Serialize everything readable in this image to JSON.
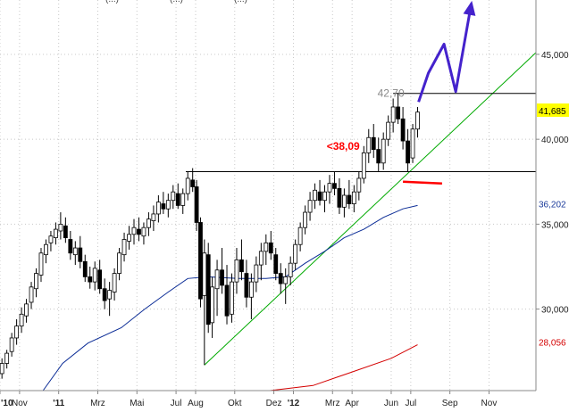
{
  "chart_data": {
    "type": "candlestick",
    "title_fragments": [
      "(...)",
      "(...)",
      "(...)"
    ],
    "x_ticks": [
      {
        "label": "'10",
        "month": 0
      },
      {
        "label": "Nov",
        "month": 1
      },
      {
        "label": "'11",
        "month": 3
      },
      {
        "label": "Mrz",
        "month": 5
      },
      {
        "label": "Mai",
        "month": 7
      },
      {
        "label": "Jul",
        "month": 9
      },
      {
        "label": "Aug",
        "month": 10
      },
      {
        "label": "Okt",
        "month": 12
      },
      {
        "label": "Dez",
        "month": 14
      },
      {
        "label": "'12",
        "month": 15
      },
      {
        "label": "Mrz",
        "month": 17
      },
      {
        "label": "Apr",
        "month": 18
      },
      {
        "label": "Jun",
        "month": 20
      },
      {
        "label": "Jul",
        "month": 21
      },
      {
        "label": "Sep",
        "month": 23
      },
      {
        "label": "Nov",
        "month": 25
      }
    ],
    "y_ticks": [
      {
        "label": "30,000",
        "value": 30
      },
      {
        "label": "35,000",
        "value": 35
      },
      {
        "label": "40,000",
        "value": 40
      },
      {
        "label": "45,000",
        "value": 45
      }
    ],
    "ylim": [
      25.2,
      48.2
    ],
    "xlim": [
      0,
      27.4
    ],
    "candles": [
      [
        0.1,
        26.2,
        27.1,
        25.9,
        26.8
      ],
      [
        0.35,
        26.8,
        27.6,
        26.5,
        27.4
      ],
      [
        0.6,
        27.5,
        28.6,
        27.2,
        28.3
      ],
      [
        0.85,
        28.3,
        29.4,
        27.9,
        29.0
      ],
      [
        1.1,
        29.0,
        30.1,
        28.6,
        29.7
      ],
      [
        1.35,
        29.6,
        30.6,
        29.2,
        30.3
      ],
      [
        1.6,
        30.4,
        31.6,
        30.0,
        31.3
      ],
      [
        1.85,
        31.2,
        32.4,
        30.7,
        32.1
      ],
      [
        2.1,
        32.0,
        33.6,
        31.6,
        33.3
      ],
      [
        2.35,
        33.2,
        34.1,
        32.7,
        33.8
      ],
      [
        2.6,
        33.9,
        34.6,
        33.4,
        34.3
      ],
      [
        2.85,
        34.2,
        35.1,
        33.8,
        34.7
      ],
      [
        3.1,
        34.6,
        35.7,
        34.1,
        35.0
      ],
      [
        3.35,
        34.9,
        35.4,
        33.9,
        34.2
      ],
      [
        3.6,
        34.1,
        34.6,
        32.9,
        33.3
      ],
      [
        3.85,
        33.2,
        34.0,
        32.6,
        33.6
      ],
      [
        4.1,
        33.6,
        34.3,
        32.4,
        32.8
      ],
      [
        4.35,
        32.8,
        33.2,
        31.6,
        31.9
      ],
      [
        4.6,
        31.9,
        32.5,
        31.2,
        31.6
      ],
      [
        4.85,
        31.6,
        32.8,
        31.1,
        32.4
      ],
      [
        5.1,
        32.3,
        32.9,
        30.9,
        31.2
      ],
      [
        5.35,
        31.2,
        31.8,
        30.0,
        30.5
      ],
      [
        5.6,
        30.6,
        31.6,
        29.6,
        31.1
      ],
      [
        5.85,
        31.0,
        32.4,
        30.5,
        32.1
      ],
      [
        6.1,
        32.1,
        33.6,
        31.7,
        33.3
      ],
      [
        6.35,
        33.2,
        34.5,
        32.8,
        34.1
      ],
      [
        6.6,
        34.0,
        34.9,
        33.5,
        34.4
      ],
      [
        6.85,
        34.4,
        35.3,
        33.8,
        34.8
      ],
      [
        7.1,
        34.7,
        35.4,
        34.0,
        34.4
      ],
      [
        7.35,
        34.3,
        35.1,
        33.8,
        34.8
      ],
      [
        7.6,
        34.8,
        35.7,
        34.3,
        35.3
      ],
      [
        7.85,
        35.2,
        36.1,
        34.6,
        35.6
      ],
      [
        8.1,
        35.6,
        36.7,
        35.1,
        36.3
      ],
      [
        8.35,
        36.2,
        36.9,
        35.6,
        35.9
      ],
      [
        8.6,
        35.9,
        36.8,
        35.4,
        36.4
      ],
      [
        8.85,
        36.4,
        37.3,
        35.9,
        36.9
      ],
      [
        9.1,
        36.8,
        37.4,
        35.9,
        36.1
      ],
      [
        9.35,
        36.1,
        37.1,
        35.6,
        36.8
      ],
      [
        9.6,
        36.8,
        38.1,
        36.4,
        37.7
      ],
      [
        9.85,
        37.6,
        38.3,
        36.9,
        37.2
      ],
      [
        10.05,
        37.2,
        37.6,
        34.6,
        35.1
      ],
      [
        10.25,
        35.1,
        35.4,
        30.1,
        30.6
      ],
      [
        10.45,
        30.8,
        34.1,
        26.7,
        33.3
      ],
      [
        10.65,
        33.2,
        33.9,
        28.6,
        29.1
      ],
      [
        10.85,
        29.2,
        31.9,
        28.3,
        31.3
      ],
      [
        11.1,
        31.2,
        32.9,
        29.6,
        32.3
      ],
      [
        11.35,
        32.3,
        33.6,
        30.9,
        31.4
      ],
      [
        11.6,
        31.4,
        32.6,
        29.1,
        29.6
      ],
      [
        11.85,
        29.7,
        32.1,
        29.2,
        31.6
      ],
      [
        12.1,
        31.6,
        33.6,
        30.9,
        32.9
      ],
      [
        12.35,
        32.9,
        34.1,
        31.7,
        32.2
      ],
      [
        12.6,
        32.1,
        32.9,
        30.1,
        30.7
      ],
      [
        12.85,
        30.7,
        32.1,
        29.4,
        31.6
      ],
      [
        13.1,
        31.6,
        33.1,
        31.0,
        32.6
      ],
      [
        13.35,
        32.6,
        33.9,
        31.7,
        33.4
      ],
      [
        13.6,
        33.4,
        34.4,
        32.6,
        33.9
      ],
      [
        13.85,
        33.9,
        34.6,
        32.9,
        33.3
      ],
      [
        14.1,
        33.2,
        33.6,
        31.7,
        32.1
      ],
      [
        14.35,
        32.1,
        32.7,
        30.9,
        31.5
      ],
      [
        14.6,
        31.5,
        32.4,
        30.3,
        31.9
      ],
      [
        14.85,
        31.9,
        33.1,
        31.4,
        32.7
      ],
      [
        15.1,
        32.7,
        34.1,
        32.3,
        33.8
      ],
      [
        15.35,
        33.8,
        35.1,
        33.4,
        34.8
      ],
      [
        15.6,
        34.8,
        36.1,
        34.4,
        35.7
      ],
      [
        15.85,
        35.7,
        36.9,
        35.2,
        36.4
      ],
      [
        16.1,
        36.4,
        37.4,
        35.9,
        37.0
      ],
      [
        16.35,
        36.9,
        37.6,
        36.1,
        36.4
      ],
      [
        16.6,
        36.4,
        37.3,
        35.7,
        36.9
      ],
      [
        16.85,
        36.9,
        37.9,
        36.2,
        37.4
      ],
      [
        17.1,
        37.4,
        38.1,
        36.7,
        37.1
      ],
      [
        17.35,
        37.1,
        37.7,
        35.6,
        36.0
      ],
      [
        17.6,
        36.0,
        37.1,
        35.4,
        36.7
      ],
      [
        17.85,
        36.7,
        37.6,
        35.9,
        36.2
      ],
      [
        18.1,
        36.2,
        37.3,
        35.7,
        36.9
      ],
      [
        18.35,
        36.9,
        38.1,
        36.4,
        37.7
      ],
      [
        18.6,
        37.7,
        39.6,
        37.4,
        39.2
      ],
      [
        18.85,
        39.2,
        40.6,
        38.6,
        40.1
      ],
      [
        19.1,
        40.1,
        40.9,
        38.9,
        39.4
      ],
      [
        19.35,
        39.4,
        40.1,
        38.1,
        38.6
      ],
      [
        19.6,
        38.6,
        40.4,
        38.2,
        40.0
      ],
      [
        19.85,
        40.0,
        41.4,
        39.6,
        41.0
      ],
      [
        20.1,
        41.0,
        42.4,
        40.4,
        41.9
      ],
      [
        20.35,
        41.9,
        42.7,
        40.9,
        41.2
      ],
      [
        20.6,
        41.2,
        41.9,
        39.4,
        39.9
      ],
      [
        20.85,
        39.9,
        40.6,
        38.1,
        38.6
      ],
      [
        21.1,
        38.9,
        40.9,
        38.6,
        40.6
      ],
      [
        21.35,
        40.6,
        41.9,
        40.1,
        41.6
      ]
    ],
    "moving_averages": [
      {
        "color": "#0b2c96",
        "points": [
          [
            2.2,
            25.2
          ],
          [
            3.2,
            26.8
          ],
          [
            4.5,
            28.0
          ],
          [
            6.2,
            28.9
          ],
          [
            7.4,
            30.0
          ],
          [
            8.6,
            31.0
          ],
          [
            9.6,
            31.8
          ],
          [
            10.6,
            31.9
          ],
          [
            12.2,
            31.8
          ],
          [
            13.6,
            31.8
          ],
          [
            14.6,
            31.9
          ],
          [
            15.6,
            32.7
          ],
          [
            16.6,
            33.4
          ],
          [
            17.6,
            34.2
          ],
          [
            18.6,
            34.7
          ],
          [
            19.6,
            35.4
          ],
          [
            20.6,
            35.9
          ],
          [
            21.35,
            36.1
          ]
        ]
      },
      {
        "color": "#d40000",
        "points": [
          [
            13.8,
            25.2
          ],
          [
            16.0,
            25.5
          ],
          [
            18.0,
            26.3
          ],
          [
            20.0,
            27.1
          ],
          [
            21.35,
            27.9
          ]
        ]
      }
    ],
    "trendlines": [
      {
        "color": "#00aa00",
        "points": [
          [
            10.45,
            26.7
          ],
          [
            27.4,
            45.1
          ]
        ]
      },
      {
        "color": "#000000",
        "points": [
          [
            9.5,
            38.09
          ],
          [
            27.4,
            38.09
          ]
        ]
      },
      {
        "color": "#000000",
        "points": [
          [
            20.1,
            42.7
          ],
          [
            27.4,
            42.7
          ]
        ]
      },
      {
        "color": "#ff0000",
        "points": [
          [
            20.6,
            37.5
          ],
          [
            22.6,
            37.4
          ]
        ]
      }
    ],
    "projection": {
      "color": "#4422cc",
      "points": [
        [
          21.4,
          42.2
        ],
        [
          21.9,
          43.9
        ],
        [
          22.7,
          45.6
        ],
        [
          23.3,
          42.8
        ],
        [
          24.1,
          48.0
        ]
      ]
    },
    "annotations": [
      {
        "text": "42,70",
        "color": "#888888",
        "x": 19.3,
        "y": 42.7
      },
      {
        "text": "<38,09",
        "color": "#ff0000",
        "x": 16.7,
        "y": 39.6
      }
    ],
    "price_tags": [
      {
        "label": "41,685",
        "value": 41.685,
        "bg": "#ffff00",
        "fg": "#000000"
      },
      {
        "label": "36,202",
        "value": 36.202,
        "bg": "#ffffff",
        "fg": "#1a3a9a"
      },
      {
        "label": "28,056",
        "value": 28.056,
        "bg": "#ffffff",
        "fg": "#d40000"
      }
    ]
  }
}
